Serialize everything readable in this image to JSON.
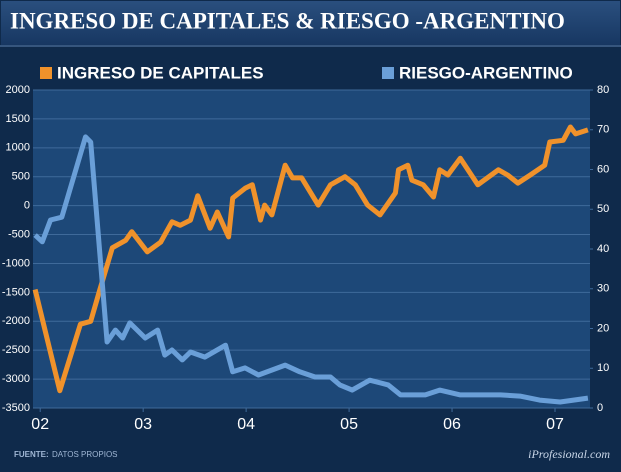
{
  "chart_data": {
    "type": "line",
    "title": "INGRESO DE CAPITALES & RIESGO -ARGENTINO",
    "source_label": "FUENTE:",
    "source_text": "DATOS PROPIOS",
    "brand": "iProfesional.com",
    "xlim": [
      2001.93,
      2007.34
    ],
    "xticks": [
      {
        "value": 2002,
        "label": "02"
      },
      {
        "value": 2003,
        "label": "03"
      },
      {
        "value": 2004,
        "label": "04"
      },
      {
        "value": 2005,
        "label": "05"
      },
      {
        "value": 2006,
        "label": "06"
      },
      {
        "value": 2007,
        "label": "07"
      }
    ],
    "ylim": [
      -3500,
      2000
    ],
    "yticks": [
      -3500,
      -3000,
      -2500,
      -2000,
      -1500,
      -1000,
      -500,
      0,
      500,
      1000,
      1500,
      2000
    ],
    "y2lim": [
      0,
      80
    ],
    "y2ticks": [
      0,
      10,
      20,
      30,
      40,
      50,
      60,
      70,
      80
    ],
    "grid": true,
    "series": [
      {
        "name": "INGRESO DE CAPITALES",
        "color": "#f0922b",
        "axis": "y",
        "x": [
          2001.95,
          2002.19,
          2002.39,
          2002.49,
          2002.58,
          2002.7,
          2002.83,
          2002.89,
          2003.04,
          2003.17,
          2003.28,
          2003.36,
          2003.46,
          2003.53,
          2003.65,
          2003.72,
          2003.83,
          2003.87,
          2003.99,
          2004.06,
          2004.14,
          2004.18,
          2004.25,
          2004.38,
          2004.45,
          2004.54,
          2004.7,
          2004.82,
          2004.96,
          2005.06,
          2005.18,
          2005.3,
          2005.45,
          2005.48,
          2005.57,
          2005.61,
          2005.72,
          2005.82,
          2005.88,
          2005.96,
          2006.08,
          2006.25,
          2006.45,
          2006.54,
          2006.64,
          2006.76,
          2006.9,
          2006.95,
          2007.08,
          2007.15,
          2007.2,
          2007.32
        ],
        "values": [
          -1450,
          -3200,
          -2050,
          -2000,
          -1450,
          -730,
          -600,
          -450,
          -800,
          -630,
          -280,
          -340,
          -250,
          170,
          -390,
          -110,
          -540,
          130,
          300,
          360,
          -250,
          10,
          -160,
          700,
          480,
          480,
          10,
          360,
          500,
          360,
          10,
          -160,
          220,
          620,
          700,
          440,
          360,
          150,
          620,
          530,
          820,
          360,
          620,
          530,
          390,
          530,
          700,
          1100,
          1130,
          1360,
          1240,
          1310
        ]
      },
      {
        "name": "RIESGO-ARGENTINO",
        "color": "#6a9fd8",
        "axis": "y2",
        "x": [
          2001.95,
          2002.02,
          2002.1,
          2002.21,
          2002.44,
          2002.49,
          2002.65,
          2002.73,
          2002.8,
          2002.87,
          2003.02,
          2003.14,
          2003.21,
          2003.28,
          2003.38,
          2003.46,
          2003.6,
          2003.8,
          2003.87,
          2003.99,
          2004.12,
          2004.38,
          2004.52,
          2004.67,
          2004.82,
          2004.91,
          2005.03,
          2005.2,
          2005.38,
          2005.5,
          2005.74,
          2005.88,
          2006.08,
          2006.47,
          2006.66,
          2006.85,
          2007.05,
          2007.32
        ],
        "values": [
          43.5,
          41.8,
          47.3,
          48,
          68.2,
          66.9,
          16.6,
          19.6,
          17.6,
          21.4,
          17.6,
          19.6,
          13.3,
          14.6,
          12.1,
          14.1,
          12.8,
          15.8,
          9.1,
          10.1,
          8.3,
          10.8,
          9.1,
          7.8,
          7.8,
          5.8,
          4.5,
          7.0,
          5.8,
          3.3,
          3.3,
          4.5,
          3.3,
          3.3,
          3.0,
          2.0,
          1.5,
          2.5
        ]
      }
    ]
  }
}
